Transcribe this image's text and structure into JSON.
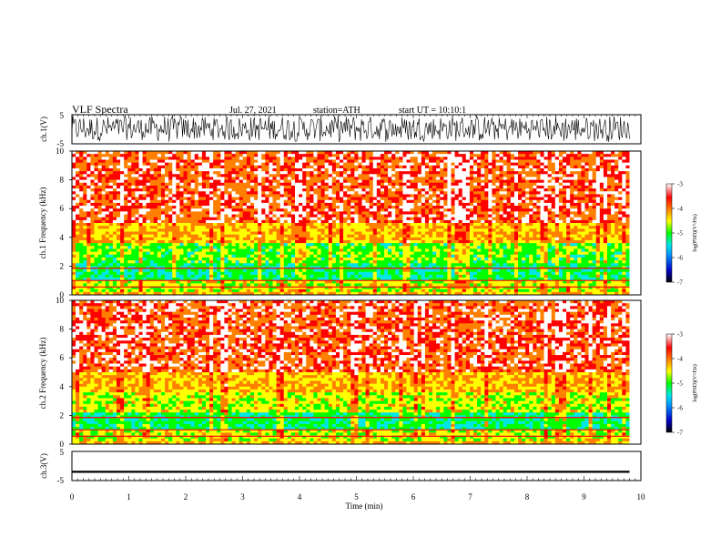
{
  "header": {
    "title": "VLF Spectra",
    "date": "Jul. 27, 2021",
    "station": "station=ATH",
    "start": "start UT = 10:10:1"
  },
  "chart_data": [
    {
      "type": "line",
      "panel": "ch1-waveform",
      "ylabel": "ch.1(V)",
      "ylim": [
        -5,
        5
      ],
      "yticks": [
        "5",
        "-5"
      ],
      "xlim": [
        0,
        10
      ],
      "description_values": "dense noisy waveform oscillating roughly between -3 and +5 V"
    },
    {
      "type": "heatmap",
      "panel": "ch1-spectrogram",
      "ylabel": "ch.1 Frequency (kHz)",
      "ylim": [
        0,
        10
      ],
      "yticks": [
        "0",
        "2",
        "4",
        "6",
        "8",
        "10"
      ],
      "xlim": [
        0,
        9.8
      ],
      "colorbar": {
        "label": "log(PSD)(V²/Hz)",
        "range": [
          -7,
          -3
        ],
        "ticks": [
          "-3",
          "-4",
          "-5",
          "-6",
          "-7"
        ]
      }
    },
    {
      "type": "heatmap",
      "panel": "ch2-spectrogram",
      "ylabel": "ch.2 Frequency (kHz)",
      "ylim": [
        0,
        10
      ],
      "yticks": [
        "0",
        "2",
        "4",
        "6",
        "8",
        "10"
      ],
      "xlim": [
        0,
        9.8
      ],
      "colorbar": {
        "label": "log(PSD)(V²/Hz)",
        "range": [
          -7,
          -3
        ],
        "ticks": [
          "-3",
          "-4",
          "-5",
          "-6",
          "-7"
        ]
      }
    },
    {
      "type": "line",
      "panel": "ch3-waveform",
      "ylabel": "ch.3(V)",
      "ylim": [
        -5,
        5
      ],
      "yticks": [
        "5",
        "-5"
      ],
      "xlim": [
        0,
        10
      ],
      "description_values": "nearly flat trace at about -2 V"
    }
  ],
  "xaxis": {
    "label": "Time (min)",
    "ticks": [
      "0",
      "1",
      "2",
      "3",
      "4",
      "5",
      "6",
      "7",
      "8",
      "9",
      "10"
    ]
  },
  "colors": {
    "colormap": [
      "#000000",
      "#0000c8",
      "#0096ff",
      "#00e6e6",
      "#00ff00",
      "#ffff00",
      "#ff8000",
      "#ff0000",
      "#ffffff"
    ]
  }
}
